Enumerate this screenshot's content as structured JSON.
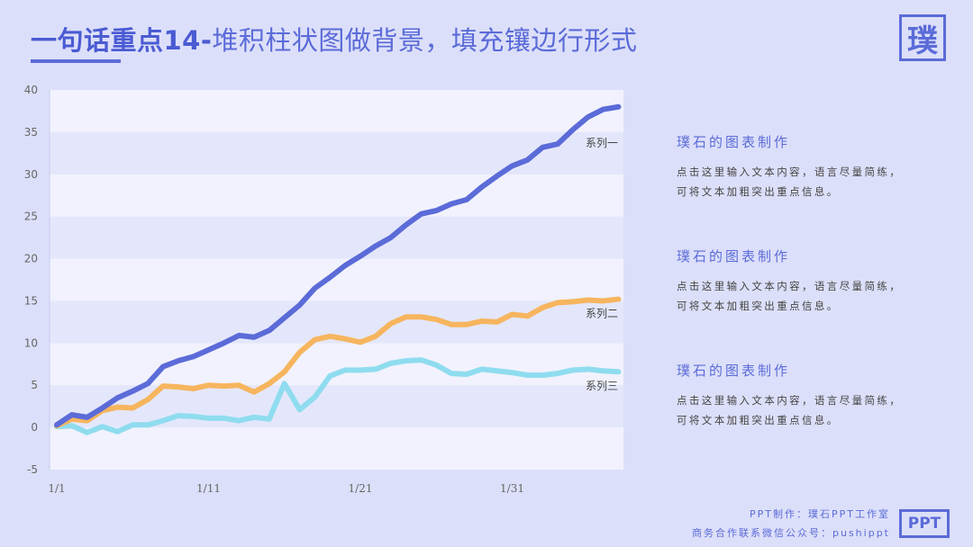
{
  "header": {
    "title_bold": "一句话重点14-",
    "title_rest": "堆积柱状图做背景，填充镶边行形式",
    "logo_char": "璞"
  },
  "info_blocks": [
    {
      "title": "璞石的图表制作",
      "line1": "点击这里输入文本内容，语言尽量简练，",
      "line2": "可将文本加粗突出重点信息。"
    },
    {
      "title": "璞石的图表制作",
      "line1": "点击这里输入文本内容，语言尽量简练，",
      "line2": "可将文本加粗突出重点信息。"
    },
    {
      "title": "璞石的图表制作",
      "line1": "点击这里输入文本内容，语言尽量简练，",
      "line2": "可将文本加粗突出重点信息。"
    }
  ],
  "footer": {
    "line1": "PPT制作：璞石PPT工作室",
    "line2": "商务合作联系微信公众号：pushippt",
    "badge": "PPT"
  },
  "colors": {
    "accent": "#5b6bd8",
    "series1": "#5b6bd8",
    "series2": "#f6b55e",
    "series3": "#8fdcef",
    "band": "#f1f2fd"
  },
  "chart_data": {
    "type": "line",
    "title": "",
    "xlabel": "",
    "ylabel": "",
    "ylim": [
      -5,
      40
    ],
    "yticks": [
      "40",
      "35",
      "30",
      "25",
      "20",
      "15",
      "10",
      "5",
      "0",
      "-5"
    ],
    "xtick_labels": [
      "1/1",
      "1/11",
      "1/21",
      "1/31"
    ],
    "xtick_positions": [
      1,
      11,
      21,
      31
    ],
    "grid": "alternating horizontal bands",
    "x": [
      1,
      2,
      3,
      4,
      5,
      6,
      7,
      8,
      9,
      10,
      11,
      12,
      13,
      14,
      15,
      16,
      17,
      18,
      19,
      20,
      21,
      22,
      23,
      24,
      25,
      26,
      27,
      28,
      29,
      30,
      31,
      32,
      33,
      34,
      35,
      36,
      37,
      38
    ],
    "series": [
      {
        "name": "系列一",
        "color": "#5b6bd8",
        "values": [
          0.3,
          1.5,
          1.2,
          2.3,
          3.5,
          4.3,
          5.2,
          7.2,
          7.9,
          8.4,
          9.2,
          10.0,
          10.9,
          10.7,
          11.5,
          13.0,
          14.5,
          16.5,
          17.8,
          19.2,
          20.3,
          21.5,
          22.5,
          24.0,
          25.3,
          25.7,
          26.5,
          27.0,
          28.5,
          29.8,
          31.0,
          31.7,
          33.2,
          33.6,
          35.3,
          36.8,
          37.7,
          38.0
        ]
      },
      {
        "name": "系列二",
        "color": "#f6b55e",
        "values": [
          0.2,
          1.0,
          0.8,
          2.0,
          2.4,
          2.3,
          3.3,
          4.9,
          4.8,
          4.6,
          5.0,
          4.9,
          5.0,
          4.2,
          5.2,
          6.6,
          8.9,
          10.4,
          10.8,
          10.5,
          10.1,
          10.8,
          12.3,
          13.1,
          13.1,
          12.8,
          12.2,
          12.2,
          12.6,
          12.5,
          13.4,
          13.2,
          14.2,
          14.8,
          14.9,
          15.1,
          15.0,
          15.2
        ]
      },
      {
        "name": "系列三",
        "color": "#8fdcef",
        "values": [
          0.1,
          0.2,
          -0.6,
          0.1,
          -0.5,
          0.3,
          0.3,
          0.8,
          1.4,
          1.3,
          1.1,
          1.1,
          0.8,
          1.2,
          1.0,
          5.2,
          2.1,
          3.6,
          6.1,
          6.8,
          6.8,
          6.9,
          7.6,
          7.9,
          8.0,
          7.4,
          6.4,
          6.3,
          6.9,
          6.7,
          6.5,
          6.2,
          6.2,
          6.4,
          6.8,
          6.9,
          6.7,
          6.6
        ]
      }
    ]
  }
}
